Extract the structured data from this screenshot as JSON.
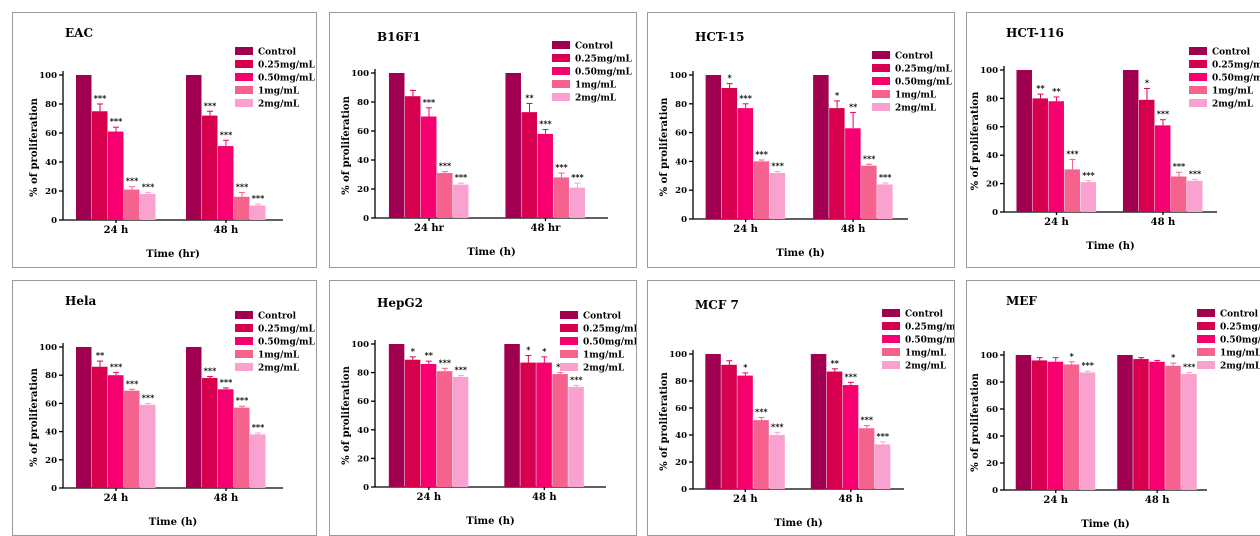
{
  "colors": {
    "Control": "#A0004F",
    "0.25mg/mL": "#D6004F",
    "0.50mg/mL": "#F5006E",
    "1mg/mL": "#F6628E",
    "2mg/mL": "#F9A2D0"
  },
  "chart_data": [
    {
      "type": "bar",
      "title": "EAC",
      "xlabel": "Time (hr)",
      "ylabel": "% of proliferation",
      "categories": [
        "24 h",
        "48 h"
      ],
      "ylim": [
        0,
        100
      ],
      "yticks": [
        0,
        20,
        40,
        60,
        80,
        100
      ],
      "legend": "top-right",
      "series": [
        {
          "name": "Control",
          "values": [
            100,
            100
          ],
          "err": [
            0,
            0
          ],
          "sig": [
            "",
            ""
          ]
        },
        {
          "name": "0.25mg/mL",
          "values": [
            75,
            72
          ],
          "err": [
            5,
            3
          ],
          "sig": [
            "***",
            "***"
          ]
        },
        {
          "name": "0.50mg/mL",
          "values": [
            61,
            51
          ],
          "err": [
            3,
            4
          ],
          "sig": [
            "***",
            "***"
          ]
        },
        {
          "name": "1mg/mL",
          "values": [
            21,
            16
          ],
          "err": [
            2,
            3
          ],
          "sig": [
            "***",
            "***"
          ]
        },
        {
          "name": "2mg/mL",
          "values": [
            18,
            10
          ],
          "err": [
            1,
            1
          ],
          "sig": [
            "***",
            "***"
          ]
        }
      ]
    },
    {
      "type": "bar",
      "title": "B16F1",
      "xlabel": "Time (h)",
      "ylabel": "% of proliferation",
      "categories": [
        "24 hr",
        "48 hr"
      ],
      "ylim": [
        0,
        100
      ],
      "yticks": [
        0,
        20,
        40,
        60,
        80,
        100
      ],
      "legend": "top-right",
      "series": [
        {
          "name": "Control",
          "values": [
            100,
            100
          ],
          "err": [
            0,
            0
          ],
          "sig": [
            "",
            ""
          ]
        },
        {
          "name": "0.25mg/mL",
          "values": [
            84,
            73
          ],
          "err": [
            4,
            6
          ],
          "sig": [
            "",
            "**"
          ]
        },
        {
          "name": "0.50mg/mL",
          "values": [
            70,
            58
          ],
          "err": [
            6,
            3
          ],
          "sig": [
            "***",
            "***"
          ]
        },
        {
          "name": "1mg/mL",
          "values": [
            31,
            28
          ],
          "err": [
            1,
            3
          ],
          "sig": [
            "***",
            "***"
          ]
        },
        {
          "name": "2mg/mL",
          "values": [
            23,
            21
          ],
          "err": [
            1,
            3
          ],
          "sig": [
            "***",
            "***"
          ]
        }
      ]
    },
    {
      "type": "bar",
      "title": "HCT-15",
      "xlabel": "Time (h)",
      "ylabel": "% of proliferation",
      "categories": [
        "24 h",
        "48 h"
      ],
      "ylim": [
        0,
        100
      ],
      "yticks": [
        0,
        20,
        40,
        60,
        80,
        100
      ],
      "legend": "top-right",
      "series": [
        {
          "name": "Control",
          "values": [
            100,
            100
          ],
          "err": [
            0,
            0
          ],
          "sig": [
            "",
            ""
          ]
        },
        {
          "name": "0.25mg/mL",
          "values": [
            91,
            77
          ],
          "err": [
            3,
            5
          ],
          "sig": [
            "*",
            "*"
          ]
        },
        {
          "name": "0.50mg/mL",
          "values": [
            77,
            63
          ],
          "err": [
            3,
            11
          ],
          "sig": [
            "***",
            "**"
          ]
        },
        {
          "name": "1mg/mL",
          "values": [
            40,
            37
          ],
          "err": [
            1,
            1
          ],
          "sig": [
            "***",
            "***"
          ]
        },
        {
          "name": "2mg/mL",
          "values": [
            32,
            24
          ],
          "err": [
            1,
            1
          ],
          "sig": [
            "***",
            "***"
          ]
        }
      ]
    },
    {
      "type": "bar",
      "title": "HCT-116",
      "xlabel": "Time (h)",
      "ylabel": "% of proliferation",
      "categories": [
        "24 h",
        "48 h"
      ],
      "ylim": [
        0,
        100
      ],
      "yticks": [
        0,
        20,
        40,
        60,
        80,
        100
      ],
      "legend": "top-right",
      "series": [
        {
          "name": "Control",
          "values": [
            100,
            100
          ],
          "err": [
            0,
            0
          ],
          "sig": [
            "",
            ""
          ]
        },
        {
          "name": "0.25mg/mL",
          "values": [
            80,
            79
          ],
          "err": [
            3,
            8
          ],
          "sig": [
            "**",
            "*"
          ]
        },
        {
          "name": "0.50mg/mL",
          "values": [
            78,
            61
          ],
          "err": [
            3,
            4
          ],
          "sig": [
            "**",
            "***"
          ]
        },
        {
          "name": "1mg/mL",
          "values": [
            30,
            25
          ],
          "err": [
            7,
            3
          ],
          "sig": [
            "***",
            "***"
          ]
        },
        {
          "name": "2mg/mL",
          "values": [
            21,
            22
          ],
          "err": [
            1,
            1
          ],
          "sig": [
            "***",
            "***"
          ]
        }
      ]
    },
    {
      "type": "bar",
      "title": "Hela",
      "xlabel": "Time (h)",
      "ylabel": "% of proliferation",
      "categories": [
        "24 h",
        "48 h"
      ],
      "ylim": [
        0,
        100
      ],
      "yticks": [
        0,
        20,
        40,
        60,
        80,
        100
      ],
      "legend": "top-right",
      "series": [
        {
          "name": "Control",
          "values": [
            100,
            100
          ],
          "err": [
            0,
            0
          ],
          "sig": [
            "",
            ""
          ]
        },
        {
          "name": "0.25mg/mL",
          "values": [
            86,
            78
          ],
          "err": [
            4,
            1
          ],
          "sig": [
            "**",
            "***"
          ]
        },
        {
          "name": "0.50mg/mL",
          "values": [
            80,
            70
          ],
          "err": [
            2,
            1
          ],
          "sig": [
            "***",
            "***"
          ]
        },
        {
          "name": "1mg/mL",
          "values": [
            69,
            57
          ],
          "err": [
            1,
            1
          ],
          "sig": [
            "***",
            "***"
          ]
        },
        {
          "name": "2mg/mL",
          "values": [
            59,
            38
          ],
          "err": [
            1,
            1
          ],
          "sig": [
            "***",
            "***"
          ]
        }
      ]
    },
    {
      "type": "bar",
      "title": "HepG2",
      "xlabel": "Time (h)",
      "ylabel": "% of proliferation",
      "categories": [
        "24 h",
        "48 h"
      ],
      "ylim": [
        0,
        100
      ],
      "yticks": [
        0,
        20,
        40,
        60,
        80,
        100
      ],
      "legend": "top-right",
      "series": [
        {
          "name": "Control",
          "values": [
            100,
            100
          ],
          "err": [
            0,
            0
          ],
          "sig": [
            "",
            ""
          ]
        },
        {
          "name": "0.25mg/mL",
          "values": [
            89,
            87
          ],
          "err": [
            2,
            5
          ],
          "sig": [
            "*",
            "*"
          ]
        },
        {
          "name": "0.50mg/mL",
          "values": [
            86,
            87
          ],
          "err": [
            2,
            4
          ],
          "sig": [
            "**",
            "*"
          ]
        },
        {
          "name": "1mg/mL",
          "values": [
            81,
            79
          ],
          "err": [
            2,
            1
          ],
          "sig": [
            "***",
            "**"
          ]
        },
        {
          "name": "2mg/mL",
          "values": [
            77,
            70
          ],
          "err": [
            1,
            1
          ],
          "sig": [
            "***",
            "***"
          ]
        }
      ]
    },
    {
      "type": "bar",
      "title": "MCF 7",
      "xlabel": "Time (h)",
      "ylabel": "% of proliferation",
      "categories": [
        "24 h",
        "48 h"
      ],
      "ylim": [
        0,
        100
      ],
      "yticks": [
        0,
        20,
        40,
        60,
        80,
        100
      ],
      "legend": "top-right",
      "series": [
        {
          "name": "Control",
          "values": [
            100,
            100
          ],
          "err": [
            0,
            0
          ],
          "sig": [
            "",
            ""
          ]
        },
        {
          "name": "0.25mg/mL",
          "values": [
            92,
            87
          ],
          "err": [
            3,
            2
          ],
          "sig": [
            "",
            "**"
          ]
        },
        {
          "name": "0.50mg/mL",
          "values": [
            84,
            77
          ],
          "err": [
            2,
            2
          ],
          "sig": [
            "*",
            "***"
          ]
        },
        {
          "name": "1mg/mL",
          "values": [
            51,
            45
          ],
          "err": [
            2,
            2
          ],
          "sig": [
            "***",
            "***"
          ]
        },
        {
          "name": "2mg/mL",
          "values": [
            40,
            33
          ],
          "err": [
            2,
            2
          ],
          "sig": [
            "***",
            "***"
          ]
        }
      ]
    },
    {
      "type": "bar",
      "title": "MEF",
      "xlabel": "Time (h)",
      "ylabel": "% of proliferation",
      "categories": [
        "24 h",
        "48 h"
      ],
      "ylim": [
        0,
        100
      ],
      "yticks": [
        0,
        20,
        40,
        60,
        80,
        100
      ],
      "legend": "top-right",
      "series": [
        {
          "name": "Control",
          "values": [
            100,
            100
          ],
          "err": [
            0,
            0
          ],
          "sig": [
            "",
            ""
          ]
        },
        {
          "name": "0.25mg/mL",
          "values": [
            96,
            97
          ],
          "err": [
            2,
            1
          ],
          "sig": [
            "",
            ""
          ]
        },
        {
          "name": "0.50mg/mL",
          "values": [
            95,
            95
          ],
          "err": [
            3,
            1
          ],
          "sig": [
            "",
            ""
          ]
        },
        {
          "name": "1mg/mL",
          "values": [
            93,
            92
          ],
          "err": [
            2,
            2
          ],
          "sig": [
            "*",
            "*"
          ]
        },
        {
          "name": "2mg/mL",
          "values": [
            87,
            86
          ],
          "err": [
            1,
            1
          ],
          "sig": [
            "***",
            "***"
          ]
        }
      ]
    }
  ]
}
